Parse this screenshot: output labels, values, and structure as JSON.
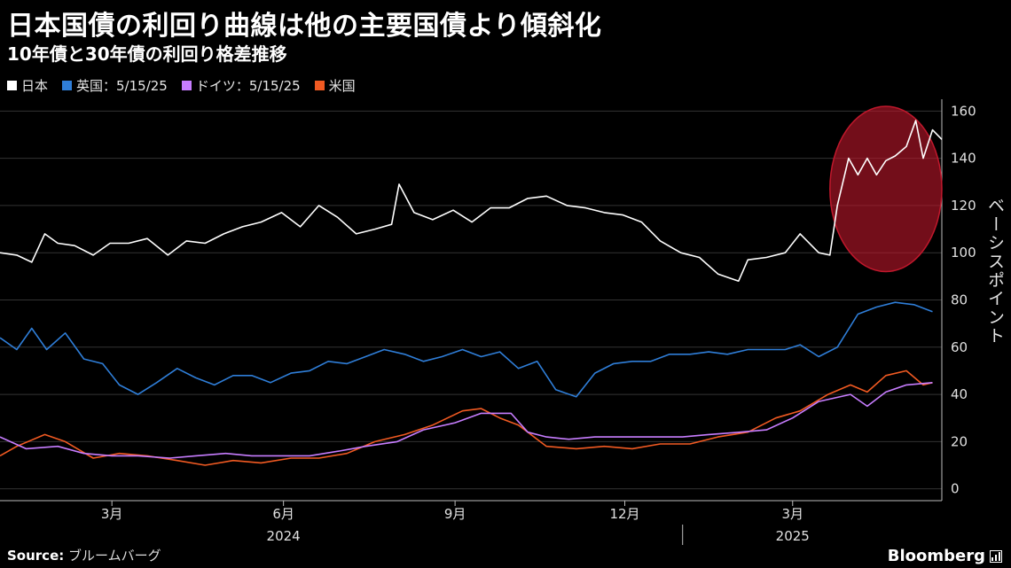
{
  "title": "日本国債の利回り曲線は他の主要国債より傾斜化",
  "subtitle": "10年債と30年債の利回り格差推移",
  "source_label": "Source:",
  "source_text": "ブルームバーグ",
  "brand": "Bloomberg",
  "colors": {
    "japan": "#ffffff",
    "uk": "#2f7ed8",
    "germany": "#c77dff",
    "us": "#f15a22",
    "highlight": "#c0182c",
    "grid": "#333333",
    "axis": "#bbbbbb"
  },
  "chart_data": {
    "type": "line",
    "ylabel": "ベーシスポイント",
    "ylim": [
      -5,
      165
    ],
    "yticks": [
      0,
      20,
      40,
      60,
      80,
      100,
      120,
      140,
      160
    ],
    "xlim": [
      "2024-01-01",
      "2025-05-20"
    ],
    "xticks": [
      {
        "date": "2024-03-01",
        "label": "3月"
      },
      {
        "date": "2024-06-01",
        "label": "6月"
      },
      {
        "date": "2024-09-01",
        "label": "9月"
      },
      {
        "date": "2024-12-01",
        "label": "12月"
      },
      {
        "date": "2025-03-01",
        "label": "3月"
      }
    ],
    "year_labels": [
      {
        "date": "2024-06-01",
        "label": "2024"
      },
      {
        "date": "2025-03-01",
        "label": "2025"
      }
    ],
    "year_separator": "2025-01-01",
    "grid": true,
    "legend_position": "top-left",
    "highlight_region": {
      "x": [
        "2025-03-21",
        "2025-05-20"
      ],
      "y": [
        92,
        162
      ]
    },
    "series": [
      {
        "name": "日本",
        "key": "japan",
        "x": [
          "2024-01-01",
          "2024-01-10",
          "2024-01-18",
          "2024-01-25",
          "2024-02-01",
          "2024-02-10",
          "2024-02-20",
          "2024-02-29",
          "2024-03-10",
          "2024-03-20",
          "2024-03-31",
          "2024-04-10",
          "2024-04-20",
          "2024-04-30",
          "2024-05-10",
          "2024-05-20",
          "2024-05-31",
          "2024-06-10",
          "2024-06-20",
          "2024-06-30",
          "2024-07-10",
          "2024-07-20",
          "2024-07-29",
          "2024-08-02",
          "2024-08-10",
          "2024-08-20",
          "2024-08-31",
          "2024-09-10",
          "2024-09-20",
          "2024-09-30",
          "2024-10-10",
          "2024-10-20",
          "2024-10-31",
          "2024-11-10",
          "2024-11-20",
          "2024-11-30",
          "2024-12-10",
          "2024-12-20",
          "2024-12-31",
          "2025-01-10",
          "2025-01-20",
          "2025-01-31",
          "2025-02-05",
          "2025-02-15",
          "2025-02-25",
          "2025-03-05",
          "2025-03-15",
          "2025-03-21",
          "2025-03-25",
          "2025-03-31",
          "2025-04-05",
          "2025-04-10",
          "2025-04-15",
          "2025-04-20",
          "2025-04-25",
          "2025-05-01",
          "2025-05-06",
          "2025-05-10",
          "2025-05-15",
          "2025-05-20"
        ],
        "y": [
          100,
          99,
          96,
          108,
          104,
          103,
          99,
          104,
          104,
          106,
          99,
          105,
          104,
          108,
          111,
          113,
          117,
          111,
          120,
          115,
          108,
          110,
          112,
          129,
          117,
          114,
          118,
          113,
          119,
          119,
          123,
          124,
          120,
          119,
          117,
          116,
          113,
          105,
          100,
          98,
          91,
          88,
          97,
          98,
          100,
          108,
          100,
          99,
          120,
          140,
          133,
          140,
          133,
          139,
          141,
          145,
          156,
          140,
          152,
          148
        ]
      },
      {
        "name": "英国：5/15/25",
        "key": "uk",
        "x": [
          "2024-01-01",
          "2024-01-10",
          "2024-01-18",
          "2024-01-26",
          "2024-02-05",
          "2024-02-15",
          "2024-02-25",
          "2024-03-05",
          "2024-03-15",
          "2024-03-25",
          "2024-04-05",
          "2024-04-15",
          "2024-04-25",
          "2024-05-05",
          "2024-05-15",
          "2024-05-25",
          "2024-06-05",
          "2024-06-15",
          "2024-06-25",
          "2024-07-05",
          "2024-07-15",
          "2024-07-25",
          "2024-08-05",
          "2024-08-15",
          "2024-08-25",
          "2024-09-05",
          "2024-09-15",
          "2024-09-25",
          "2024-10-05",
          "2024-10-15",
          "2024-10-25",
          "2024-11-05",
          "2024-11-15",
          "2024-11-25",
          "2024-12-05",
          "2024-12-15",
          "2024-12-25",
          "2025-01-05",
          "2025-01-15",
          "2025-01-25",
          "2025-02-05",
          "2025-02-15",
          "2025-02-25",
          "2025-03-05",
          "2025-03-15",
          "2025-03-25",
          "2025-04-05",
          "2025-04-15",
          "2025-04-25",
          "2025-05-05",
          "2025-05-15"
        ],
        "y": [
          64,
          59,
          68,
          59,
          66,
          55,
          53,
          44,
          40,
          45,
          51,
          47,
          44,
          48,
          48,
          45,
          49,
          50,
          54,
          53,
          56,
          59,
          57,
          54,
          56,
          59,
          56,
          58,
          51,
          54,
          42,
          39,
          49,
          53,
          54,
          54,
          57,
          57,
          58,
          57,
          59,
          59,
          59,
          61,
          56,
          60,
          74,
          77,
          79,
          78,
          75
        ]
      },
      {
        "name": "ドイツ：5/15/25",
        "key": "germany",
        "x": [
          "2024-01-01",
          "2024-01-15",
          "2024-02-01",
          "2024-02-15",
          "2024-03-01",
          "2024-03-15",
          "2024-04-01",
          "2024-04-15",
          "2024-05-01",
          "2024-05-15",
          "2024-06-01",
          "2024-06-15",
          "2024-07-01",
          "2024-07-15",
          "2024-08-01",
          "2024-08-15",
          "2024-09-01",
          "2024-09-15",
          "2024-10-01",
          "2024-10-10",
          "2024-10-20",
          "2024-11-01",
          "2024-11-15",
          "2024-12-01",
          "2024-12-15",
          "2025-01-01",
          "2025-01-15",
          "2025-02-01",
          "2025-02-15",
          "2025-03-01",
          "2025-03-15",
          "2025-04-01",
          "2025-04-10",
          "2025-04-20",
          "2025-05-01",
          "2025-05-15"
        ],
        "y": [
          22,
          17,
          18,
          15,
          14,
          14,
          13,
          14,
          15,
          14,
          14,
          14,
          16,
          18,
          20,
          25,
          28,
          32,
          32,
          24,
          22,
          21,
          22,
          22,
          22,
          22,
          23,
          24,
          25,
          30,
          37,
          40,
          35,
          41,
          44,
          45
        ]
      },
      {
        "name": "米国",
        "key": "us",
        "x": [
          "2024-01-01",
          "2024-01-10",
          "2024-01-25",
          "2024-02-05",
          "2024-02-20",
          "2024-03-05",
          "2024-03-20",
          "2024-04-05",
          "2024-04-20",
          "2024-05-05",
          "2024-05-20",
          "2024-06-05",
          "2024-06-20",
          "2024-07-05",
          "2024-07-20",
          "2024-08-05",
          "2024-08-20",
          "2024-09-05",
          "2024-09-15",
          "2024-09-25",
          "2024-10-05",
          "2024-10-20",
          "2024-11-05",
          "2024-11-20",
          "2024-12-05",
          "2024-12-20",
          "2025-01-05",
          "2025-01-20",
          "2025-02-05",
          "2025-02-20",
          "2025-03-05",
          "2025-03-20",
          "2025-04-01",
          "2025-04-10",
          "2025-04-20",
          "2025-05-01",
          "2025-05-10",
          "2025-05-15"
        ],
        "y": [
          14,
          18,
          23,
          20,
          13,
          15,
          14,
          12,
          10,
          12,
          11,
          13,
          13,
          15,
          20,
          23,
          27,
          33,
          34,
          30,
          27,
          18,
          17,
          18,
          17,
          19,
          19,
          22,
          24,
          30,
          33,
          40,
          44,
          41,
          48,
          50,
          44,
          45
        ]
      }
    ]
  }
}
